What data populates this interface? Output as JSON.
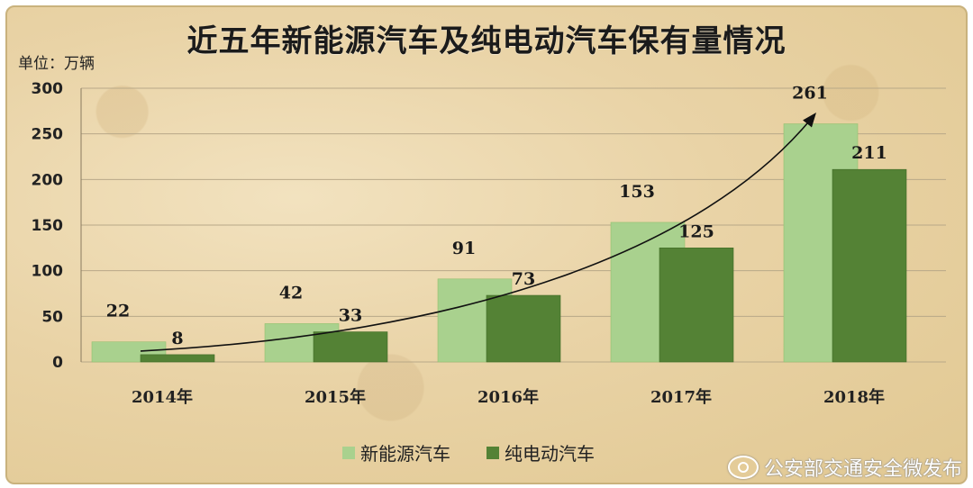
{
  "chart_data": {
    "type": "bar",
    "title": "近五年新能源汽车及纯电动汽车保有量情况",
    "unit_label": "单位：万辆",
    "categories": [
      "2014年",
      "2015年",
      "2016年",
      "2017年",
      "2018年"
    ],
    "series": [
      {
        "name": "新能源汽车",
        "values": [
          22,
          42,
          91,
          153,
          261
        ],
        "color": "#a9d18e"
      },
      {
        "name": "纯电动汽车",
        "values": [
          8,
          33,
          73,
          125,
          211
        ],
        "color": "#548235"
      }
    ],
    "ylim": [
      0,
      300
    ],
    "yticks": [
      0,
      50,
      100,
      150,
      200,
      250,
      300
    ],
    "grid": true,
    "legend": "bottom",
    "trend_arrow": true
  },
  "watermark": "公安部交通安全微发布"
}
